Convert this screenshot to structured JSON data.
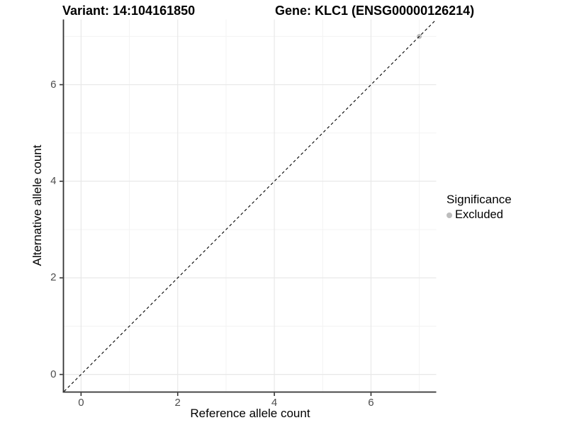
{
  "titles": {
    "variant": "Variant: 14:104161850",
    "gene": "Gene: KLC1 (ENSG00000126214)"
  },
  "chart_data": {
    "type": "scatter",
    "title_left": "Variant: 14:104161850",
    "title_right": "Gene: KLC1 (ENSG00000126214)",
    "xlabel": "Reference allele count",
    "ylabel": "Alternative allele count",
    "xlim": [
      -0.35,
      7.35
    ],
    "ylim": [
      -0.35,
      7.35
    ],
    "x_ticks": [
      0,
      2,
      4,
      6
    ],
    "y_ticks": [
      0,
      2,
      4,
      6
    ],
    "minor_ticks": [
      1,
      3,
      5,
      7
    ],
    "grid": "major and minor, light gray on white panel",
    "points": [
      {
        "x": 7,
        "y": 7,
        "series": "Excluded",
        "color": "#bdbdbd",
        "radius": 3.5
      }
    ],
    "reference_line": {
      "kind": "identity y=x",
      "style": "dashed",
      "color": "#000000",
      "x_start": -0.35,
      "y_start": -0.35,
      "x_end": 7.35,
      "y_end": 7.35
    },
    "legend": {
      "title": "Significance",
      "position": "right",
      "items": [
        {
          "label": "Excluded",
          "color": "#bdbdbd"
        }
      ]
    },
    "colors": {
      "panel_background": "#ffffff",
      "axis_line": "#333333",
      "tick_mark": "#333333",
      "tick_text": "#4d4d4d",
      "grid_major": "#e8e8e8",
      "grid_minor": "#f3f3f3",
      "title_text": "#000000"
    }
  }
}
